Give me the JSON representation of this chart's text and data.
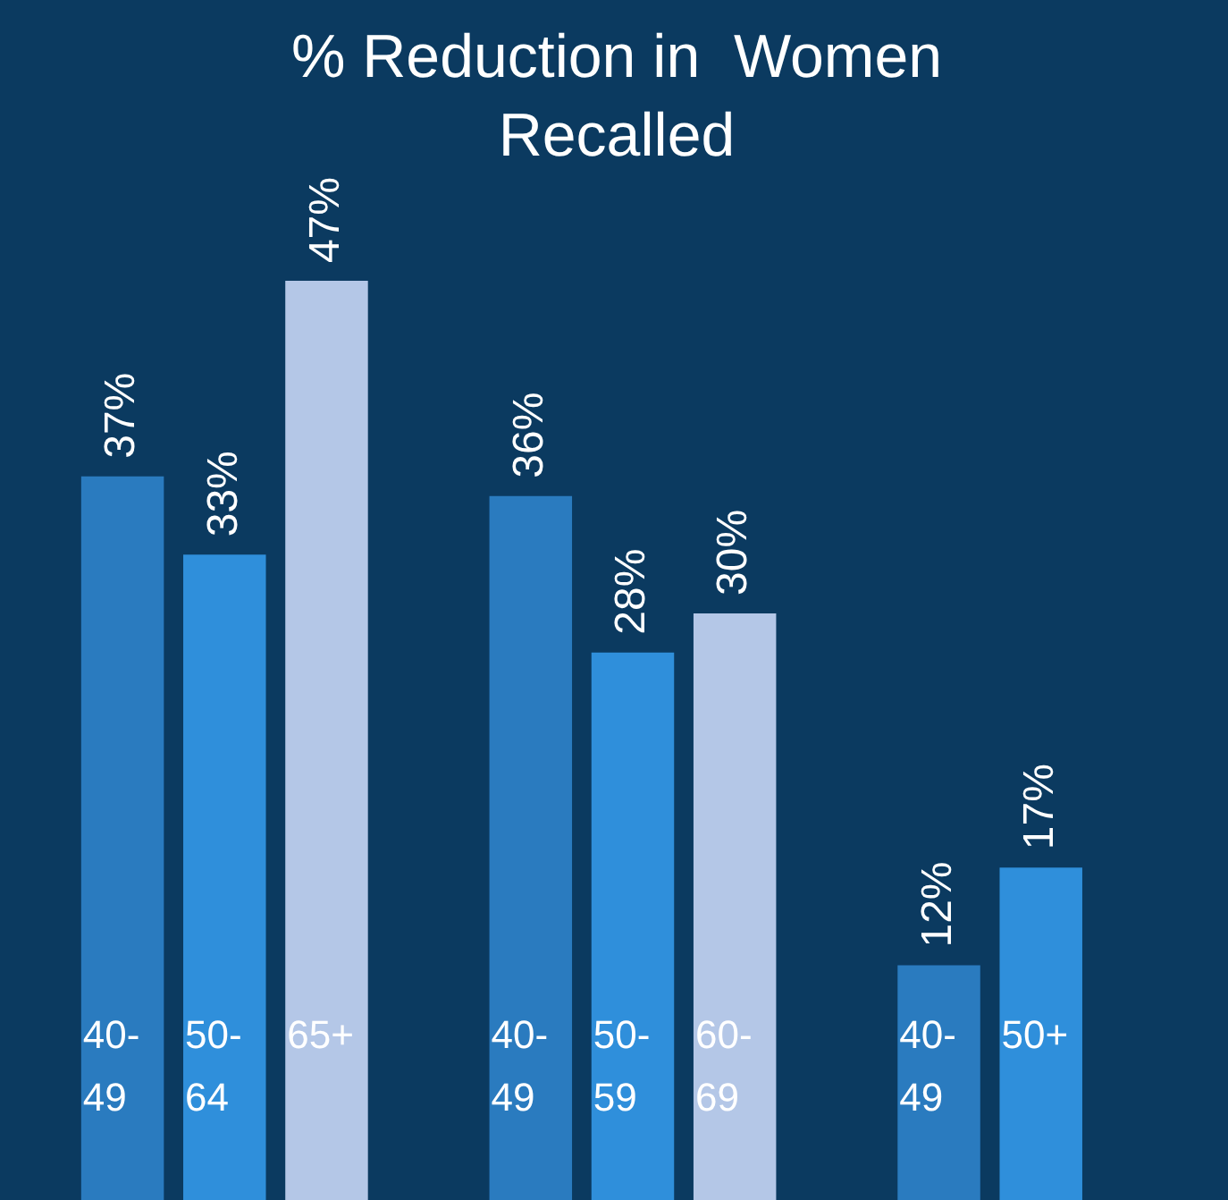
{
  "chart_data": {
    "type": "bar",
    "title": "% Reduction in  Women Recalled",
    "categories": [
      "40-49",
      "50-64",
      "65+",
      null,
      "40-49",
      "50-59",
      "60-69",
      null,
      "40-49",
      "50+",
      null
    ],
    "values": [
      37,
      33,
      47,
      null,
      36,
      28,
      30,
      null,
      12,
      17,
      null
    ],
    "colors": [
      "#2a7bbf",
      "#2f8fdb",
      "#b4c7e7",
      null,
      "#2a7bbf",
      "#2f8fdb",
      "#b4c7e7",
      null,
      "#2a7bbf",
      "#2f8fdb",
      null
    ],
    "value_labels": [
      "37%",
      "33%",
      "47%",
      null,
      "36%",
      "28%",
      "30%",
      null,
      "12%",
      "17%",
      null
    ],
    "legend": false
  }
}
